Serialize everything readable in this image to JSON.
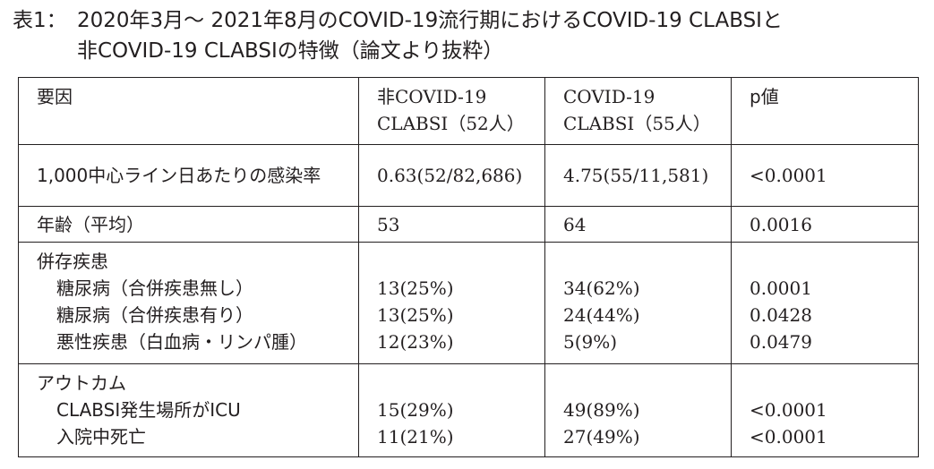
{
  "caption": {
    "label": "表1：",
    "line1": "2020年3月～ 2021年8月のCOVID-19流行期におけるCOVID-19 CLABSIと",
    "line2": "非COVID-19 CLABSIの特徴（論文より抜粋）"
  },
  "table": {
    "header": {
      "factor": "要因",
      "noncovid_line1": "非COVID-19",
      "noncovid_line2": "CLABSI（52人）",
      "covid_line1": "COVID-19",
      "covid_line2": "CLABSI（55人）",
      "p": "p値"
    },
    "infection_rate": {
      "label": "1,000中心ライン日あたりの感染率",
      "noncovid": "0.63(52/82,686)",
      "covid": "4.75(55/11,581)",
      "p": "<0.0001"
    },
    "age": {
      "label": "年齢（平均）",
      "noncovid": "53",
      "covid": "64",
      "p": "0.0016"
    },
    "comorbidity": {
      "heading": "併存疾患",
      "rows": [
        {
          "label": "糖尿病（合併疾患無し）",
          "noncovid": "13(25%)",
          "covid": "34(62%)",
          "p": "0.0001"
        },
        {
          "label": "糖尿病（合併疾患有り）",
          "noncovid": "13(25%)",
          "covid": "24(44%)",
          "p": "0.0428"
        },
        {
          "label": "悪性疾患（白血病・リンパ腫）",
          "noncovid": "12(23%)",
          "covid": "5(9%)",
          "p": "0.0479"
        }
      ]
    },
    "outcome": {
      "heading": "アウトカム",
      "rows": [
        {
          "label": "CLABSI発生場所がICU",
          "noncovid": "15(29%)",
          "covid": "49(89%)",
          "p": "<0.0001"
        },
        {
          "label": "入院中死亡",
          "noncovid": "11(21%)",
          "covid": "27(49%)",
          "p": "<0.0001"
        }
      ]
    }
  }
}
